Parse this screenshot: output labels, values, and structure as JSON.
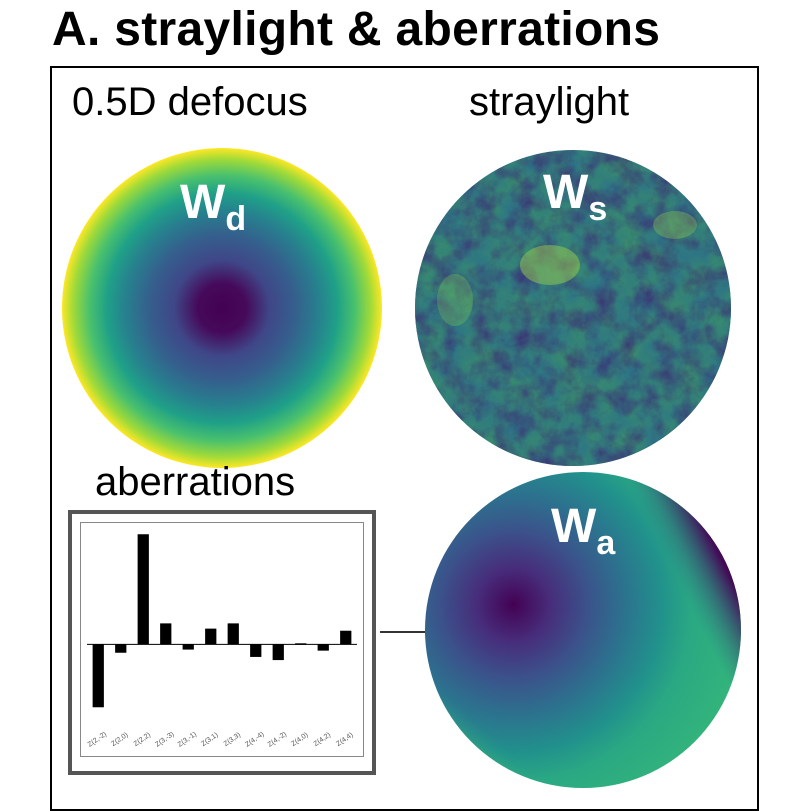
{
  "title": "A. straylight & aberrations",
  "panels": {
    "defocus": {
      "label": "0.5D defocus",
      "symbol": "W",
      "subscript": "d"
    },
    "straylight": {
      "label": "straylight",
      "symbol": "W",
      "subscript": "s"
    },
    "aberrations": {
      "label": "aberrations",
      "symbol": "W",
      "subscript": "a"
    }
  },
  "colormap": "viridis",
  "colors": {
    "viridis_low": "#440154",
    "viridis_mid": "#21918c",
    "viridis_high": "#fde725",
    "bar": "#000000"
  },
  "chart_data": {
    "type": "bar",
    "categories": [
      "Z(2,-2)",
      "Z(2,0)",
      "Z(2,2)",
      "Z(3,-3)",
      "Z(3,-1)",
      "Z(3,1)",
      "Z(3,3)",
      "Z(4,-4)",
      "Z(4,-2)",
      "Z(4,0)",
      "Z(4,2)",
      "Z(4,4)"
    ],
    "values": [
      -0.6,
      -0.08,
      1.05,
      0.2,
      -0.05,
      0.15,
      0.2,
      -0.12,
      -0.15,
      0.01,
      -0.06,
      0.13
    ],
    "xlabel": "",
    "ylabel": "",
    "ylim": [
      -0.75,
      1.1
    ],
    "grid": false
  }
}
